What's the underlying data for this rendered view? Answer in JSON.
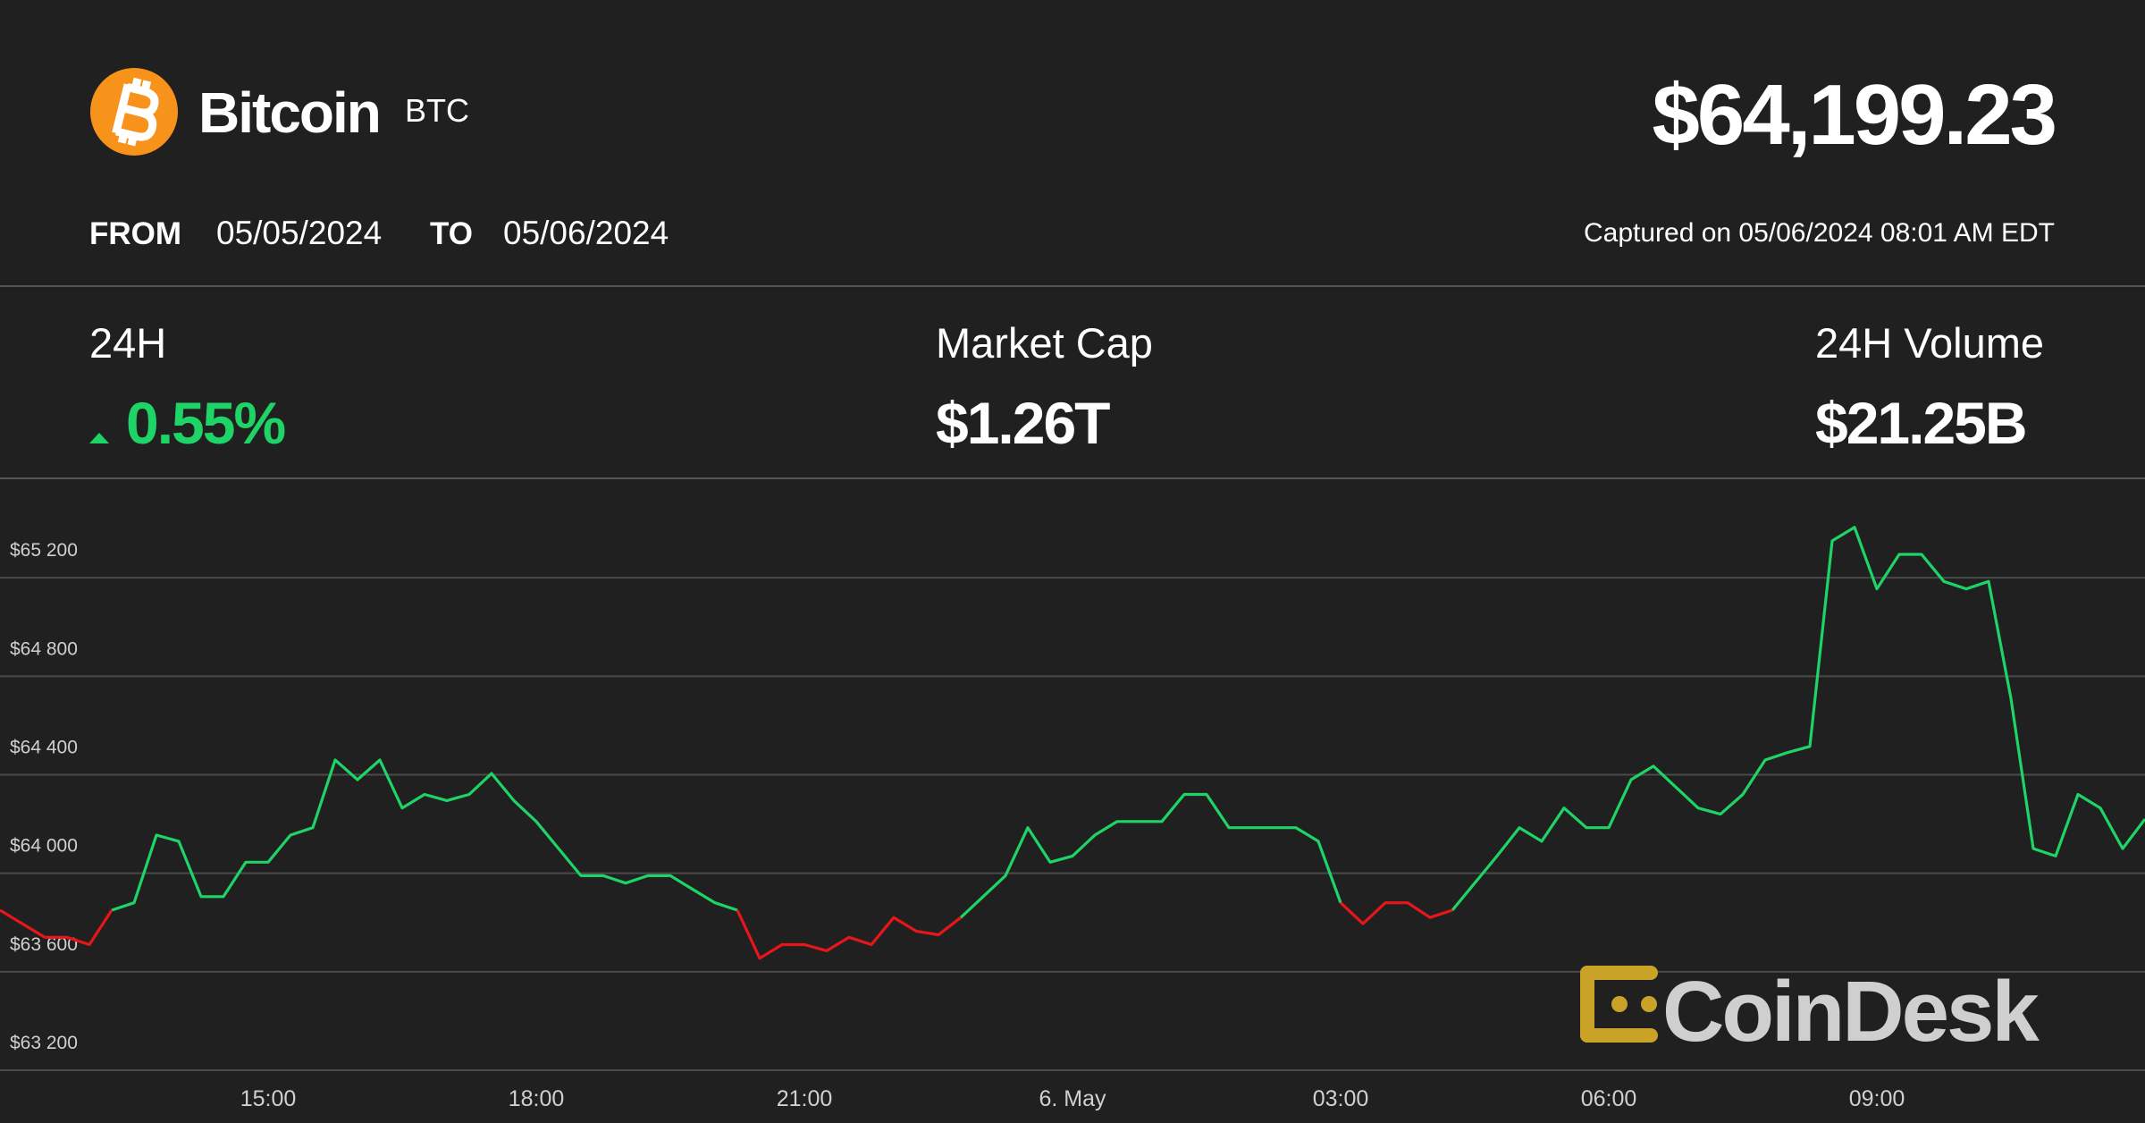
{
  "header": {
    "name": "Bitcoin",
    "symbol": "BTC",
    "price": "$64,199.23",
    "from_label": "FROM",
    "from_date": "05/05/2024",
    "to_label": "TO",
    "to_date": "05/06/2024",
    "captured": "Captured on 05/06/2024 08:01 AM EDT"
  },
  "stats": [
    {
      "label": "24H",
      "value": "0.55%"
    },
    {
      "label": "Market Cap",
      "value": "$1.26T"
    },
    {
      "label": "24H Volume",
      "value": "$21.25B"
    }
  ],
  "watermark": "CoinDesk",
  "chart_data": {
    "type": "line",
    "x": [
      12,
      12.25,
      12.5,
      12.75,
      13,
      13.25,
      13.5,
      13.75,
      14,
      14.25,
      14.5,
      14.75,
      15,
      15.25,
      15.5,
      15.75,
      16,
      16.25,
      16.5,
      16.75,
      17,
      17.25,
      17.5,
      17.75,
      18,
      18.25,
      18.5,
      18.75,
      19,
      19.25,
      19.5,
      19.75,
      20,
      20.25,
      20.5,
      20.75,
      21,
      21.25,
      21.5,
      21.75,
      22,
      22.25,
      22.5,
      22.75,
      23,
      23.25,
      23.5,
      23.75,
      24,
      24.25,
      24.5,
      24.75,
      25,
      25.25,
      25.5,
      25.75,
      26,
      26.25,
      26.5,
      26.75,
      27,
      27.25,
      27.5,
      27.75,
      28,
      28.25,
      28.5,
      28.75,
      29,
      29.25,
      29.5,
      29.75,
      30,
      30.25,
      30.5,
      30.75,
      31,
      31.25,
      31.5,
      31.75,
      32,
      32.25,
      32.5,
      32.75,
      33,
      33.25,
      33.5,
      33.75,
      34,
      34.25,
      34.5,
      34.75,
      35,
      35.25,
      35.5,
      35.75,
      36
    ],
    "series": [
      {
        "color": "#1fd466",
        "values": [
          null,
          null,
          null,
          null,
          null,
          63850,
          63880,
          64155,
          64130,
          63905,
          63905,
          64045,
          64045,
          64155,
          64185,
          64460,
          64380,
          64460,
          64265,
          64320,
          64295,
          64320,
          64405,
          64295,
          64210,
          64100,
          63990,
          63990,
          63960,
          63990,
          63990,
          63935,
          63880,
          63850,
          null,
          null,
          null,
          null,
          null,
          null,
          null,
          null,
          null,
          63820,
          63905,
          63990,
          64185,
          64045,
          64070,
          64155,
          64210,
          64210,
          64210,
          64320,
          64320,
          64185,
          64185,
          64185,
          64185,
          64130,
          63880,
          null,
          null,
          null,
          null,
          63850,
          63960,
          64070,
          64185,
          64130,
          64265,
          64185,
          64185,
          64380,
          64435,
          64350,
          64265,
          64240,
          64320,
          64460,
          64490,
          64515,
          65350,
          65405,
          65155,
          65295,
          65295,
          65185,
          65155,
          65185,
          64710,
          64100,
          64070,
          64320,
          64265,
          64100,
          64220
        ]
      },
      {
        "color": "#e8161b",
        "values": [
          63850,
          63795,
          63740,
          63740,
          63710,
          63850,
          null,
          null,
          null,
          null,
          null,
          null,
          null,
          null,
          null,
          null,
          null,
          null,
          null,
          null,
          null,
          null,
          null,
          null,
          null,
          null,
          null,
          null,
          null,
          null,
          null,
          null,
          null,
          63850,
          63655,
          63710,
          63710,
          63685,
          63740,
          63710,
          63820,
          63765,
          63750,
          63820,
          null,
          null,
          null,
          null,
          null,
          null,
          null,
          null,
          null,
          null,
          null,
          null,
          null,
          null,
          null,
          null,
          63880,
          63795,
          63880,
          63880,
          63820,
          63850,
          null,
          null,
          null,
          null,
          null,
          null,
          null,
          null,
          null,
          null,
          null,
          null,
          null,
          null,
          null,
          null,
          null,
          null,
          null,
          null,
          null,
          null,
          null,
          null,
          null,
          null,
          null,
          null,
          null,
          null,
          null
        ]
      }
    ],
    "xlim": [
      12,
      36
    ],
    "xticks": [
      {
        "value": 15,
        "label": "15:00"
      },
      {
        "value": 18,
        "label": "18:00"
      },
      {
        "value": 21,
        "label": "21:00"
      },
      {
        "value": 24,
        "label": "6. May"
      },
      {
        "value": 27,
        "label": "03:00"
      },
      {
        "value": 30,
        "label": "06:00"
      },
      {
        "value": 33,
        "label": "09:00"
      }
    ],
    "ylim": [
      63200,
      65600
    ],
    "yticks": [
      {
        "value": 63200,
        "label": "$63 200"
      },
      {
        "value": 63600,
        "label": "$63 600"
      },
      {
        "value": 64000,
        "label": "$64 000"
      },
      {
        "value": 64400,
        "label": "$64 400"
      },
      {
        "value": 64800,
        "label": "$64 800"
      },
      {
        "value": 65200,
        "label": "$65 200"
      }
    ],
    "grid": true
  }
}
